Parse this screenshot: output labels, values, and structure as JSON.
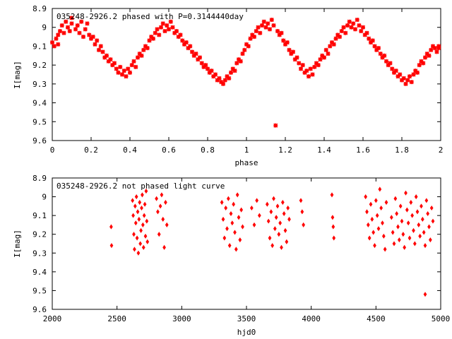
{
  "chart_data": [
    {
      "type": "scatter",
      "title": "035248-2926.2 phased with P=0.3144440day",
      "xlabel": "phase",
      "ylabel": "I[mag]",
      "xlim": [
        0,
        2
      ],
      "ylim": [
        8.9,
        9.6
      ],
      "y_inverted": true,
      "xticks": [
        0,
        0.2,
        0.4,
        0.6,
        0.8,
        1,
        1.2,
        1.4,
        1.6,
        1.8,
        2
      ],
      "xtick_labels": [
        "0",
        "0.2",
        "0.4",
        "0.6",
        "0.8",
        "1",
        "1.2",
        "1.4",
        "1.6",
        "1.8",
        "2"
      ],
      "yticks": [
        8.9,
        9,
        9.1,
        9.2,
        9.3,
        9.4,
        9.5,
        9.6
      ],
      "ytick_labels": [
        "8.9",
        "9",
        "9.1",
        "9.2",
        "9.3",
        "9.4",
        "9.5",
        "9.6"
      ],
      "marker_color": "#ff0000",
      "points": [
        [
          0.0,
          9.08
        ],
        [
          0.01,
          9.1
        ],
        [
          0.02,
          9.06
        ],
        [
          0.03,
          9.04
        ],
        [
          0.03,
          9.09
        ],
        [
          0.04,
          9.02
        ],
        [
          0.05,
          8.99
        ],
        [
          0.06,
          9.03
        ],
        [
          0.07,
          8.97
        ],
        [
          0.08,
          9.0
        ],
        [
          0.09,
          9.02
        ],
        [
          0.1,
          8.98
        ],
        [
          0.1,
          8.95
        ],
        [
          0.12,
          9.01
        ],
        [
          0.13,
          8.99
        ],
        [
          0.14,
          9.03
        ],
        [
          0.15,
          8.97
        ],
        [
          0.16,
          9.05
        ],
        [
          0.17,
          9.01
        ],
        [
          0.18,
          8.98
        ],
        [
          0.19,
          9.04
        ],
        [
          0.2,
          9.06
        ],
        [
          0.21,
          9.05
        ],
        [
          0.22,
          9.09
        ],
        [
          0.23,
          9.07
        ],
        [
          0.24,
          9.12
        ],
        [
          0.25,
          9.1
        ],
        [
          0.26,
          9.13
        ],
        [
          0.27,
          9.16
        ],
        [
          0.28,
          9.15
        ],
        [
          0.29,
          9.18
        ],
        [
          0.3,
          9.17
        ],
        [
          0.31,
          9.2
        ],
        [
          0.32,
          9.19
        ],
        [
          0.33,
          9.22
        ],
        [
          0.34,
          9.24
        ],
        [
          0.35,
          9.21
        ],
        [
          0.36,
          9.25
        ],
        [
          0.37,
          9.23
        ],
        [
          0.38,
          9.26
        ],
        [
          0.39,
          9.22
        ],
        [
          0.4,
          9.24
        ],
        [
          0.41,
          9.2
        ],
        [
          0.42,
          9.18
        ],
        [
          0.43,
          9.21
        ],
        [
          0.44,
          9.16
        ],
        [
          0.45,
          9.14
        ],
        [
          0.46,
          9.15
        ],
        [
          0.47,
          9.12
        ],
        [
          0.48,
          9.1
        ],
        [
          0.49,
          9.11
        ],
        [
          0.5,
          9.07
        ],
        [
          0.51,
          9.05
        ],
        [
          0.52,
          9.06
        ],
        [
          0.53,
          9.03
        ],
        [
          0.54,
          9.01
        ],
        [
          0.55,
          9.04
        ],
        [
          0.56,
          9.0
        ],
        [
          0.57,
          8.98
        ],
        [
          0.58,
          9.02
        ],
        [
          0.59,
          8.99
        ],
        [
          0.6,
          9.01
        ],
        [
          0.61,
          8.97
        ],
        [
          0.62,
          9.0
        ],
        [
          0.63,
          9.03
        ],
        [
          0.64,
          9.02
        ],
        [
          0.65,
          9.05
        ],
        [
          0.66,
          9.04
        ],
        [
          0.67,
          9.07
        ],
        [
          0.68,
          9.09
        ],
        [
          0.69,
          9.08
        ],
        [
          0.7,
          9.11
        ],
        [
          0.71,
          9.1
        ],
        [
          0.72,
          9.13
        ],
        [
          0.73,
          9.15
        ],
        [
          0.74,
          9.14
        ],
        [
          0.75,
          9.17
        ],
        [
          0.76,
          9.16
        ],
        [
          0.77,
          9.19
        ],
        [
          0.78,
          9.21
        ],
        [
          0.79,
          9.2
        ],
        [
          0.8,
          9.22
        ],
        [
          0.81,
          9.24
        ],
        [
          0.82,
          9.23
        ],
        [
          0.83,
          9.26
        ],
        [
          0.84,
          9.25
        ],
        [
          0.85,
          9.28
        ],
        [
          0.86,
          9.27
        ],
        [
          0.87,
          9.29
        ],
        [
          0.88,
          9.3
        ],
        [
          0.89,
          9.28
        ],
        [
          0.9,
          9.26
        ],
        [
          0.91,
          9.27
        ],
        [
          0.92,
          9.24
        ],
        [
          0.93,
          9.22
        ],
        [
          0.94,
          9.23
        ],
        [
          0.95,
          9.19
        ],
        [
          0.96,
          9.17
        ],
        [
          0.97,
          9.18
        ],
        [
          0.98,
          9.14
        ],
        [
          0.99,
          9.12
        ],
        [
          1.0,
          9.09
        ],
        [
          1.01,
          9.1
        ],
        [
          1.02,
          9.06
        ],
        [
          1.03,
          9.04
        ],
        [
          1.04,
          9.05
        ],
        [
          1.05,
          9.02
        ],
        [
          1.06,
          9.0
        ],
        [
          1.07,
          9.03
        ],
        [
          1.08,
          8.99
        ],
        [
          1.09,
          8.97
        ],
        [
          1.1,
          9.0
        ],
        [
          1.11,
          8.98
        ],
        [
          1.12,
          9.01
        ],
        [
          1.13,
          8.96
        ],
        [
          1.14,
          8.99
        ],
        [
          1.15,
          9.52
        ],
        [
          1.16,
          9.02
        ],
        [
          1.17,
          9.04
        ],
        [
          1.18,
          9.03
        ],
        [
          1.19,
          9.07
        ],
        [
          1.2,
          9.09
        ],
        [
          1.21,
          9.08
        ],
        [
          1.22,
          9.12
        ],
        [
          1.23,
          9.14
        ],
        [
          1.24,
          9.13
        ],
        [
          1.25,
          9.17
        ],
        [
          1.26,
          9.16
        ],
        [
          1.27,
          9.19
        ],
        [
          1.28,
          9.22
        ],
        [
          1.29,
          9.2
        ],
        [
          1.3,
          9.24
        ],
        [
          1.31,
          9.23
        ],
        [
          1.32,
          9.26
        ],
        [
          1.33,
          9.22
        ],
        [
          1.34,
          9.25
        ],
        [
          1.35,
          9.21
        ],
        [
          1.36,
          9.19
        ],
        [
          1.37,
          9.2
        ],
        [
          1.38,
          9.17
        ],
        [
          1.39,
          9.15
        ],
        [
          1.4,
          9.16
        ],
        [
          1.41,
          9.12
        ],
        [
          1.42,
          9.14
        ],
        [
          1.43,
          9.1
        ],
        [
          1.44,
          9.08
        ],
        [
          1.45,
          9.09
        ],
        [
          1.46,
          9.06
        ],
        [
          1.47,
          9.04
        ],
        [
          1.48,
          9.05
        ],
        [
          1.49,
          9.02
        ],
        [
          1.5,
          9.0
        ],
        [
          1.51,
          9.03
        ],
        [
          1.52,
          8.99
        ],
        [
          1.53,
          8.97
        ],
        [
          1.54,
          9.0
        ],
        [
          1.55,
          8.98
        ],
        [
          1.56,
          9.01
        ],
        [
          1.57,
          8.96
        ],
        [
          1.58,
          8.99
        ],
        [
          1.59,
          9.02
        ],
        [
          1.6,
          9.0
        ],
        [
          1.61,
          9.04
        ],
        [
          1.62,
          9.03
        ],
        [
          1.63,
          9.06
        ],
        [
          1.64,
          9.08
        ],
        [
          1.65,
          9.07
        ],
        [
          1.66,
          9.1
        ],
        [
          1.67,
          9.12
        ],
        [
          1.68,
          9.11
        ],
        [
          1.69,
          9.14
        ],
        [
          1.7,
          9.16
        ],
        [
          1.71,
          9.15
        ],
        [
          1.72,
          9.18
        ],
        [
          1.73,
          9.2
        ],
        [
          1.74,
          9.19
        ],
        [
          1.75,
          9.22
        ],
        [
          1.76,
          9.24
        ],
        [
          1.77,
          9.23
        ],
        [
          1.78,
          9.26
        ],
        [
          1.79,
          9.25
        ],
        [
          1.8,
          9.28
        ],
        [
          1.81,
          9.27
        ],
        [
          1.82,
          9.3
        ],
        [
          1.83,
          9.28
        ],
        [
          1.84,
          9.26
        ],
        [
          1.85,
          9.29
        ],
        [
          1.86,
          9.25
        ],
        [
          1.87,
          9.23
        ],
        [
          1.88,
          9.24
        ],
        [
          1.89,
          9.2
        ],
        [
          1.9,
          9.18
        ],
        [
          1.91,
          9.19
        ],
        [
          1.92,
          9.16
        ],
        [
          1.93,
          9.14
        ],
        [
          1.94,
          9.15
        ],
        [
          1.95,
          9.12
        ],
        [
          1.96,
          9.1
        ],
        [
          1.97,
          9.11
        ],
        [
          1.98,
          9.13
        ],
        [
          1.99,
          9.1
        ],
        [
          1.99,
          9.11
        ]
      ]
    },
    {
      "type": "scatter",
      "title": "035248-2926.2 not phased light curve",
      "xlabel": "hjd0",
      "ylabel": "I[mag]",
      "xlim": [
        2000,
        5000
      ],
      "ylim": [
        8.9,
        9.6
      ],
      "y_inverted": true,
      "xticks": [
        2000,
        2500,
        3000,
        3500,
        4000,
        4500,
        5000
      ],
      "xtick_labels": [
        "2000",
        "2500",
        "3000",
        "3500",
        "4000",
        "4500",
        "5000"
      ],
      "yticks": [
        8.9,
        9,
        9.1,
        9.2,
        9.3,
        9.4,
        9.5,
        9.6
      ],
      "ytick_labels": [
        "8.9",
        "9",
        "9.1",
        "9.2",
        "9.3",
        "9.4",
        "9.5",
        "9.6"
      ],
      "marker_color": "#ff0000",
      "points": [
        [
          2455,
          9.16
        ],
        [
          2458,
          9.26
        ],
        [
          2620,
          9.02
        ],
        [
          2625,
          9.1
        ],
        [
          2630,
          9.2
        ],
        [
          2635,
          9.28
        ],
        [
          2640,
          9.05
        ],
        [
          2645,
          9.14
        ],
        [
          2650,
          9.0
        ],
        [
          2655,
          9.22
        ],
        [
          2660,
          9.08
        ],
        [
          2665,
          9.3
        ],
        [
          2670,
          9.12
        ],
        [
          2675,
          9.03
        ],
        [
          2680,
          9.25
        ],
        [
          2685,
          9.18
        ],
        [
          2690,
          9.06
        ],
        [
          2695,
          8.99
        ],
        [
          2700,
          9.15
        ],
        [
          2705,
          9.27
        ],
        [
          2710,
          9.1
        ],
        [
          2715,
          9.04
        ],
        [
          2720,
          9.21
        ],
        [
          2725,
          8.97
        ],
        [
          2730,
          9.13
        ],
        [
          2735,
          9.24
        ],
        [
          2805,
          9.01
        ],
        [
          2815,
          9.08
        ],
        [
          2825,
          9.2
        ],
        [
          2835,
          9.05
        ],
        [
          2845,
          8.99
        ],
        [
          2855,
          9.12
        ],
        [
          2865,
          9.27
        ],
        [
          2875,
          9.03
        ],
        [
          2885,
          9.15
        ],
        [
          3310,
          9.03
        ],
        [
          3320,
          9.12
        ],
        [
          3330,
          9.22
        ],
        [
          3340,
          9.06
        ],
        [
          3350,
          9.17
        ],
        [
          3360,
          9.01
        ],
        [
          3370,
          9.26
        ],
        [
          3380,
          9.09
        ],
        [
          3390,
          9.14
        ],
        [
          3400,
          9.04
        ],
        [
          3410,
          9.19
        ],
        [
          3420,
          9.28
        ],
        [
          3430,
          8.99
        ],
        [
          3440,
          9.11
        ],
        [
          3450,
          9.23
        ],
        [
          3460,
          9.07
        ],
        [
          3470,
          9.16
        ],
        [
          3540,
          9.06
        ],
        [
          3560,
          9.15
        ],
        [
          3580,
          9.02
        ],
        [
          3600,
          9.1
        ],
        [
          3660,
          9.04
        ],
        [
          3670,
          9.13
        ],
        [
          3680,
          9.22
        ],
        [
          3690,
          9.08
        ],
        [
          3700,
          9.26
        ],
        [
          3710,
          9.01
        ],
        [
          3720,
          9.17
        ],
        [
          3730,
          9.11
        ],
        [
          3740,
          9.05
        ],
        [
          3750,
          9.2
        ],
        [
          3760,
          9.14
        ],
        [
          3770,
          9.27
        ],
        [
          3780,
          9.03
        ],
        [
          3790,
          9.09
        ],
        [
          3800,
          9.18
        ],
        [
          3810,
          9.24
        ],
        [
          3820,
          9.06
        ],
        [
          3830,
          9.12
        ],
        [
          3920,
          9.02
        ],
        [
          3930,
          9.08
        ],
        [
          3940,
          9.15
        ],
        [
          4160,
          8.99
        ],
        [
          4165,
          9.11
        ],
        [
          4170,
          9.16
        ],
        [
          4175,
          9.22
        ],
        [
          4420,
          9.0
        ],
        [
          4430,
          9.08
        ],
        [
          4440,
          9.15
        ],
        [
          4450,
          9.22
        ],
        [
          4460,
          9.04
        ],
        [
          4470,
          9.12
        ],
        [
          4480,
          9.19
        ],
        [
          4490,
          9.26
        ],
        [
          4500,
          9.02
        ],
        [
          4510,
          9.1
        ],
        [
          4520,
          9.17
        ],
        [
          4530,
          8.96
        ],
        [
          4540,
          9.06
        ],
        [
          4550,
          9.14
        ],
        [
          4560,
          9.21
        ],
        [
          4570,
          9.28
        ],
        [
          4580,
          9.03
        ],
        [
          4620,
          9.11
        ],
        [
          4630,
          9.19
        ],
        [
          4640,
          9.25
        ],
        [
          4650,
          9.01
        ],
        [
          4660,
          9.09
        ],
        [
          4670,
          9.16
        ],
        [
          4680,
          9.23
        ],
        [
          4690,
          9.05
        ],
        [
          4700,
          9.13
        ],
        [
          4710,
          9.2
        ],
        [
          4720,
          9.27
        ],
        [
          4730,
          8.98
        ],
        [
          4740,
          9.07
        ],
        [
          4750,
          9.14
        ],
        [
          4760,
          9.22
        ],
        [
          4770,
          9.03
        ],
        [
          4780,
          9.1
        ],
        [
          4790,
          9.18
        ],
        [
          4800,
          9.25
        ],
        [
          4810,
          9.0
        ],
        [
          4820,
          9.08
        ],
        [
          4830,
          9.15
        ],
        [
          4840,
          9.21
        ],
        [
          4850,
          9.05
        ],
        [
          4860,
          9.12
        ],
        [
          4870,
          9.19
        ],
        [
          4880,
          9.26
        ],
        [
          4880,
          9.52
        ],
        [
          4890,
          9.02
        ],
        [
          4900,
          9.09
        ],
        [
          4910,
          9.16
        ],
        [
          4920,
          9.23
        ],
        [
          4930,
          9.06
        ],
        [
          4940,
          9.13
        ]
      ]
    }
  ]
}
